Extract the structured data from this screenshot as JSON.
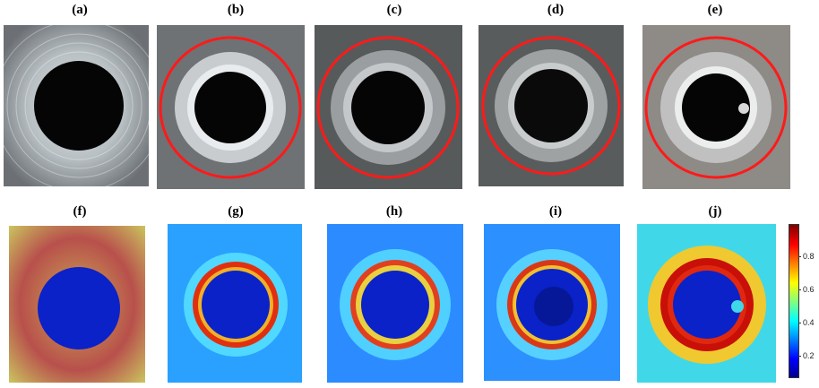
{
  "panel_labels": {
    "a": "(a)",
    "b": "(b)",
    "c": "(c)",
    "d": "(d)",
    "e": "(e)",
    "f": "(f)",
    "g": "(g)",
    "h": "(h)",
    "i": "(i)",
    "j": "(j)"
  },
  "colorbar": {
    "colormap": "jet",
    "ticks": [
      "0.8",
      "0.6",
      "0.4",
      "0.2"
    ]
  },
  "top_row_panels": [
    {
      "id": "a",
      "ring_circle": false,
      "tone": "#b8c0c4"
    },
    {
      "id": "b",
      "ring_circle": true,
      "tone": "#9aa0a2"
    },
    {
      "id": "c",
      "ring_circle": true,
      "tone": "#8a8e90"
    },
    {
      "id": "d",
      "ring_circle": true,
      "tone": "#888c8c"
    },
    {
      "id": "e",
      "ring_circle": true,
      "tone": "#b0aca8"
    }
  ],
  "colors": {
    "ring_highlight": "#ff1a1a",
    "heatmap_low": "#0a22c8",
    "heatmap_mid": "#2ec8ff",
    "heatmap_high": "#d01010"
  }
}
